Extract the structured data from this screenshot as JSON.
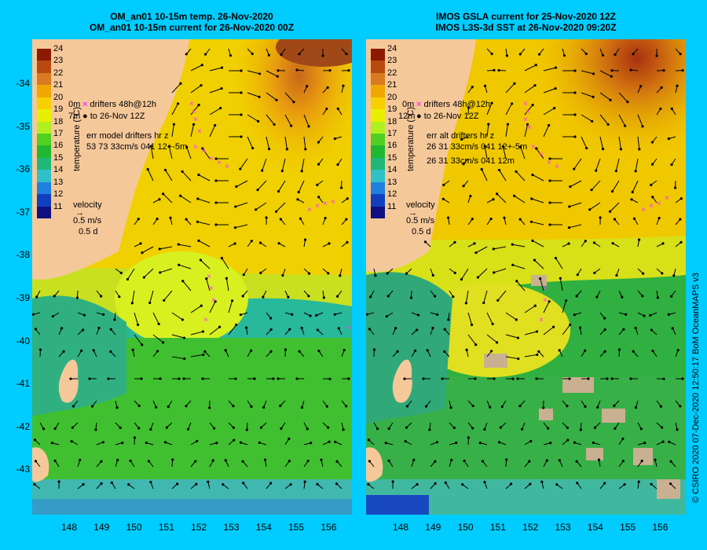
{
  "left": {
    "title_line1": "OM_an01 10-15m temp. 26-Nov-2020",
    "title_line2": "OM_an01 10-15m current for 26-Nov-2020 00Z",
    "legend_drifters": "drifters 48h@12h",
    "legend_to": "to 26-Nov 12Z",
    "legend_side_top": "0m",
    "legend_side_bottom": "7m",
    "err_line1": "err model drifters hr z",
    "err_line2": "53 73 33cm/s 041 12+-5m",
    "err_line3": ""
  },
  "right": {
    "title_line1": "IMOS GSLA current for 25-Nov-2020 12Z",
    "title_line2": "IMOS L3S-3d SST at 26-Nov-2020 09:20Z",
    "legend_drifters": "drifters 48h@12h",
    "legend_to": "to 26-Nov 12Z",
    "legend_side_top": "0m",
    "legend_side_bottom": "12m",
    "err_line1": "err alt drifters hr z",
    "err_line2": "26 31 33cm/s 041 12+-5m",
    "err_line3": "26 31 33cm/s 041 12m"
  },
  "colorbar": {
    "label": "temperature (°C)",
    "ticks": [
      "24",
      "23",
      "22",
      "21",
      "20",
      "19",
      "18",
      "17",
      "16",
      "15",
      "14",
      "13",
      "12",
      "11"
    ],
    "colors": [
      "#8b1a00",
      "#b84a10",
      "#d87a20",
      "#f0a800",
      "#f8d000",
      "#e8f000",
      "#b0f020",
      "#50d020",
      "#20b830",
      "#20b878",
      "#30c0c8",
      "#2080e0",
      "#1040c0",
      "#101080"
    ]
  },
  "velocity_key": {
    "label": "velocity",
    "speed": "0.5 m/s",
    "time": "0.5 d"
  },
  "y_ticks": [
    "-34",
    "-35",
    "-36",
    "-37",
    "-38",
    "-39",
    "-40",
    "-41",
    "-42",
    "-43"
  ],
  "x_ticks": [
    "148",
    "149",
    "150",
    "151",
    "152",
    "153",
    "154",
    "155",
    "156"
  ],
  "credit": "© CSIRO 2020  07-Dec-2020 12:50:17 BoM OceanMAPS v3",
  "colors": {
    "background": "#00ccff",
    "land": "#f5c89a",
    "arrow": "#000000",
    "drifter": "#ff33ff"
  }
}
